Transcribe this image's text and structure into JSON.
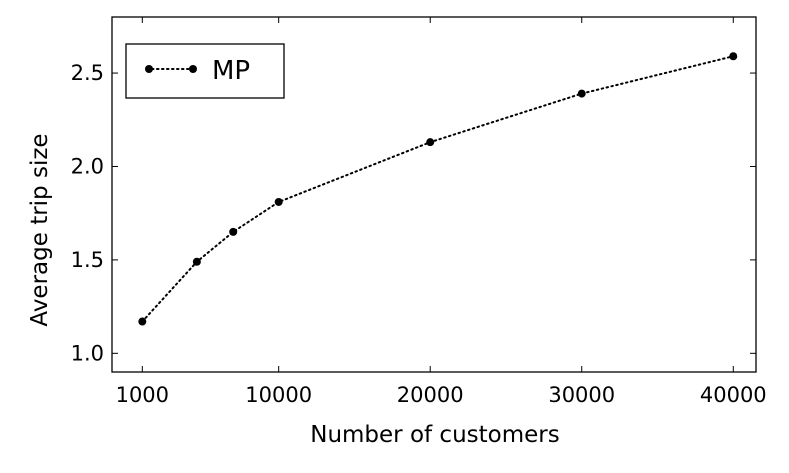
{
  "chart_data": {
    "type": "line",
    "title": "",
    "xlabel": "Number of customers",
    "ylabel": "Average trip size",
    "x": [
      1000,
      4600,
      7000,
      10000,
      20000,
      30000,
      40000
    ],
    "series": [
      {
        "name": "MP",
        "values": [
          1.17,
          1.49,
          1.65,
          1.81,
          2.13,
          2.39,
          2.59
        ],
        "color": "#000000",
        "line_style": "dotted",
        "marker": "circle"
      }
    ],
    "xlim": [
      -1000,
      41500
    ],
    "ylim": [
      0.9,
      2.8
    ],
    "xticks": [
      1000,
      10000,
      20000,
      30000,
      40000
    ],
    "xtick_labels": [
      "1000",
      "10000",
      "20000",
      "30000",
      "40000"
    ],
    "yticks": [
      1.0,
      1.5,
      2.0,
      2.5
    ],
    "ytick_labels": [
      "1.0",
      "1.5",
      "2.0",
      "2.5"
    ],
    "grid": false,
    "legend_position": "top-left"
  }
}
